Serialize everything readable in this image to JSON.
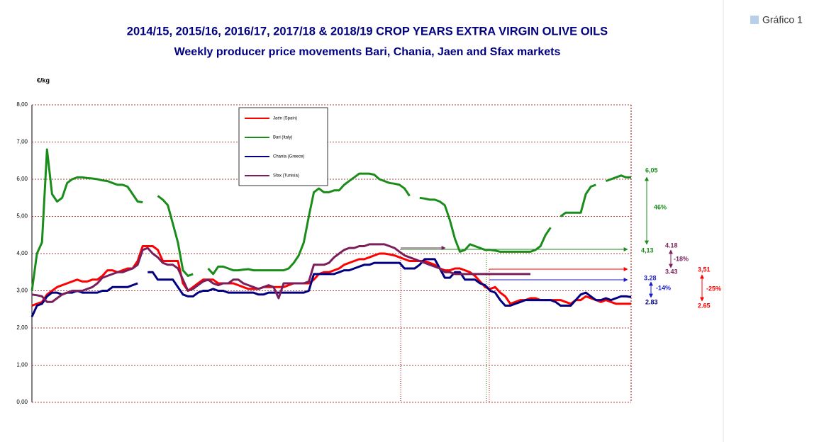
{
  "chart_data": {
    "type": "line",
    "title": "2014/15,  2015/16, 2016/17, 2017/18  &  2018/19 CROP YEARS EXTRA VIRGIN OLIVE OILS",
    "subtitle": "Weekly producer price movements Bari, Chania, Jaen and Sfax markets",
    "y_label": "€/kg",
    "caption": "Gráfico 1",
    "ylim": [
      0,
      8
    ],
    "yticks": [
      {
        "value": 0,
        "label": "0,00"
      },
      {
        "value": 1,
        "label": "1,00"
      },
      {
        "value": 2,
        "label": "2,00"
      },
      {
        "value": 3,
        "label": "3,00"
      },
      {
        "value": 4,
        "label": "4,00"
      },
      {
        "value": 5,
        "label": "5,00"
      },
      {
        "value": 6,
        "label": "6,00"
      },
      {
        "value": 7,
        "label": "7,00"
      },
      {
        "value": 8,
        "label": "8,00"
      }
    ],
    "grid": true,
    "series": [
      {
        "name": "Jaén (Spain)",
        "color": "#ff0000",
        "values": [
          2.6,
          2.65,
          2.7,
          2.9,
          3.0,
          3.1,
          3.15,
          3.2,
          3.25,
          3.3,
          3.25,
          3.25,
          3.3,
          3.3,
          3.4,
          3.55,
          3.55,
          3.5,
          3.55,
          3.6,
          3.6,
          3.8,
          4.2,
          4.2,
          4.2,
          4.1,
          3.8,
          3.8,
          3.8,
          3.8,
          3.2,
          3.0,
          3.1,
          3.2,
          3.3,
          3.3,
          3.3,
          3.2,
          3.2,
          3.2,
          3.2,
          3.15,
          3.1,
          3.05,
          3.05,
          3.05,
          3.1,
          3.1,
          3.1,
          3.1,
          3.1,
          3.15,
          3.2,
          3.2,
          3.2,
          3.2,
          3.3,
          3.45,
          3.5,
          3.5,
          3.55,
          3.6,
          3.7,
          3.75,
          3.8,
          3.85,
          3.85,
          3.9,
          3.95,
          4.0,
          4.0,
          3.98,
          3.95,
          3.9,
          3.85,
          3.8,
          3.8,
          3.8,
          3.8,
          3.75,
          3.7,
          3.6,
          3.55,
          3.55,
          3.6,
          3.6,
          3.55,
          3.5,
          3.4,
          3.25,
          3.1,
          3.05,
          3.1,
          2.95,
          2.85,
          2.65,
          2.7,
          2.75,
          2.75,
          2.8,
          2.8,
          2.75,
          2.75,
          2.75,
          2.75,
          2.75,
          2.7,
          2.65,
          2.75,
          2.75,
          2.85,
          2.8,
          2.75,
          2.7,
          2.75,
          2.7,
          2.65,
          2.65,
          2.65,
          2.65
        ]
      },
      {
        "name": "Bari (Italy)",
        "color": "#1a8c1a",
        "values": [
          3.0,
          4.0,
          4.3,
          6.8,
          5.6,
          5.4,
          5.5,
          5.9,
          6.0,
          6.05,
          6.05,
          6.03,
          6.02,
          6.0,
          5.97,
          5.95,
          5.9,
          5.85,
          5.85,
          5.8,
          5.6,
          5.4,
          5.38,
          null,
          null,
          5.55,
          5.45,
          5.3,
          4.8,
          4.3,
          3.55,
          3.4,
          3.45,
          null,
          null,
          3.6,
          3.45,
          3.65,
          3.65,
          3.6,
          3.55,
          3.55,
          3.57,
          3.58,
          3.55,
          3.55,
          3.55,
          3.55,
          3.55,
          3.55,
          3.55,
          3.6,
          3.75,
          3.95,
          4.3,
          5.0,
          5.65,
          5.75,
          5.65,
          5.65,
          5.7,
          5.7,
          5.85,
          5.95,
          6.05,
          6.15,
          6.15,
          6.15,
          6.12,
          6.0,
          5.95,
          5.9,
          5.88,
          5.85,
          5.75,
          5.55,
          null,
          5.5,
          5.48,
          5.45,
          5.45,
          5.4,
          5.3,
          4.9,
          4.4,
          4.05,
          4.1,
          4.25,
          4.2,
          4.15,
          4.1,
          4.1,
          4.08,
          4.05,
          4.05,
          4.05,
          4.05,
          4.05,
          4.05,
          4.05,
          4.1,
          4.2,
          4.5,
          4.7,
          null,
          5.0,
          5.1,
          5.1,
          5.1,
          5.1,
          5.6,
          5.8,
          5.85,
          null,
          5.95,
          6.0,
          6.05,
          6.1,
          6.05,
          6.05
        ]
      },
      {
        "name": "Chania (Greece)",
        "color": "#000080",
        "values": [
          2.3,
          2.6,
          2.65,
          2.85,
          2.95,
          2.95,
          2.9,
          2.95,
          2.95,
          3.0,
          2.95,
          2.95,
          2.95,
          2.95,
          3.0,
          3.0,
          3.1,
          3.1,
          3.1,
          3.1,
          3.15,
          3.2,
          null,
          3.5,
          3.5,
          3.3,
          3.3,
          3.3,
          3.3,
          3.1,
          2.9,
          2.85,
          2.85,
          2.95,
          3.0,
          3.0,
          3.05,
          3.0,
          3.0,
          2.95,
          2.95,
          2.95,
          2.95,
          2.95,
          2.95,
          2.9,
          2.9,
          2.95,
          2.95,
          2.95,
          2.95,
          2.95,
          2.95,
          2.95,
          2.95,
          3.0,
          3.45,
          3.45,
          3.45,
          3.45,
          3.45,
          3.5,
          3.55,
          3.55,
          3.6,
          3.65,
          3.7,
          3.7,
          3.75,
          3.75,
          3.75,
          3.75,
          3.75,
          3.75,
          3.6,
          3.6,
          3.6,
          3.7,
          3.85,
          3.85,
          3.85,
          3.6,
          3.35,
          3.35,
          3.5,
          3.5,
          3.3,
          3.3,
          3.3,
          3.2,
          3.15,
          3.0,
          2.95,
          2.75,
          2.6,
          2.6,
          2.65,
          2.7,
          2.75,
          2.75,
          2.75,
          2.75,
          2.75,
          2.75,
          2.7,
          2.6,
          2.6,
          2.6,
          2.75,
          2.9,
          2.95,
          2.85,
          2.75,
          2.75,
          2.8,
          2.75,
          2.8,
          2.85,
          2.85,
          2.83
        ]
      },
      {
        "name": "Sfax (Tunisia)",
        "color": "#7a1f5c",
        "values": [
          2.9,
          2.88,
          2.85,
          2.7,
          2.7,
          2.8,
          2.9,
          2.95,
          3.0,
          3.0,
          3.0,
          3.05,
          3.1,
          3.2,
          3.35,
          3.4,
          3.45,
          3.5,
          3.5,
          3.55,
          3.6,
          3.7,
          4.1,
          4.15,
          4.0,
          3.9,
          3.75,
          3.7,
          3.7,
          3.6,
          3.3,
          3.0,
          3.05,
          3.15,
          3.25,
          3.3,
          3.2,
          3.15,
          3.2,
          3.2,
          3.3,
          3.3,
          3.2,
          3.15,
          3.1,
          3.05,
          3.1,
          3.15,
          3.1,
          2.8,
          3.2,
          3.2,
          3.2,
          3.2,
          3.2,
          3.25,
          3.7,
          3.7,
          3.7,
          3.75,
          3.9,
          4.0,
          4.1,
          4.15,
          4.15,
          4.2,
          4.2,
          4.25,
          4.25,
          4.25,
          4.25,
          4.2,
          4.15,
          4.05,
          3.95,
          3.9,
          3.85,
          3.8,
          3.75,
          3.7,
          3.65,
          3.6,
          3.5,
          3.5,
          3.45,
          3.45,
          3.45,
          3.45,
          3.45,
          3.45,
          3.45,
          3.45,
          3.45,
          3.45,
          3.45,
          3.45,
          3.45,
          3.45,
          3.45,
          3.45,
          null,
          null,
          null,
          null,
          null,
          null,
          null,
          null,
          null,
          null,
          null,
          null,
          null,
          null,
          null,
          null,
          null,
          null,
          null,
          null
        ]
      }
    ],
    "annotations": [
      "6,05",
      "46%",
      "4,13",
      "4.18",
      "-18%",
      "3.43",
      "3.28",
      "-14%",
      "2.83",
      "3,51",
      "-25%",
      "2.65"
    ]
  }
}
